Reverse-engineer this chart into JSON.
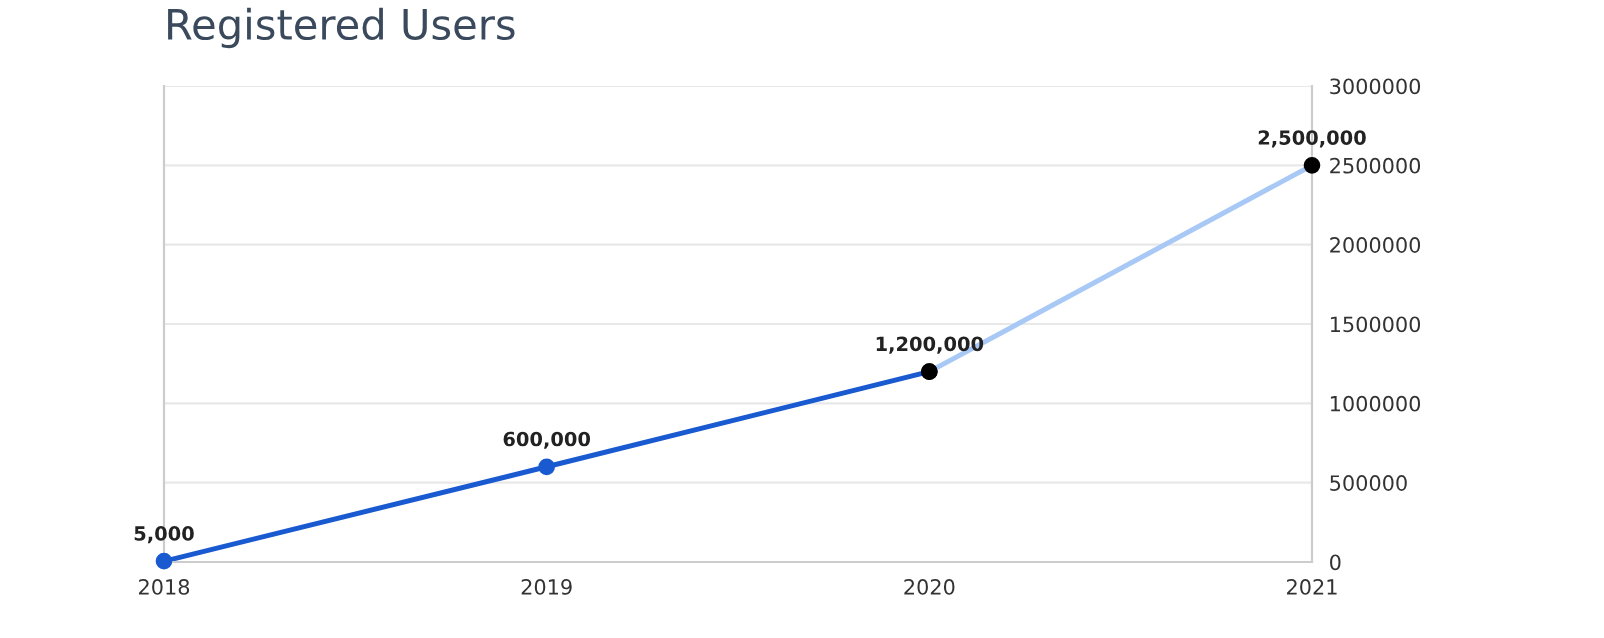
{
  "chart_data": {
    "type": "line",
    "title": "Registered Users",
    "categories": [
      "2018",
      "2019",
      "2020",
      "2021"
    ],
    "series": [
      {
        "color": "#1a5ad0",
        "colors": [
          "#1a5ad0",
          "#1a5ad0",
          "#000000",
          null
        ],
        "values": [
          5000,
          600000,
          1200000,
          null
        ],
        "value_labels": [
          "5,000",
          "600,000",
          "1,200,000",
          null
        ]
      },
      {
        "color": "#a8c8f5",
        "colors": [
          null,
          null,
          "#000000",
          "#000000"
        ],
        "values": [
          null,
          null,
          1200000,
          2500000
        ],
        "value_labels": [
          null,
          null,
          null,
          "2,500,000"
        ]
      }
    ],
    "ylim": [
      0,
      3000000
    ],
    "yticks": [
      0,
      500000,
      1000000,
      1500000,
      2000000,
      2500000,
      3000000
    ],
    "grid": "y",
    "marker": "circle",
    "legend": false
  }
}
